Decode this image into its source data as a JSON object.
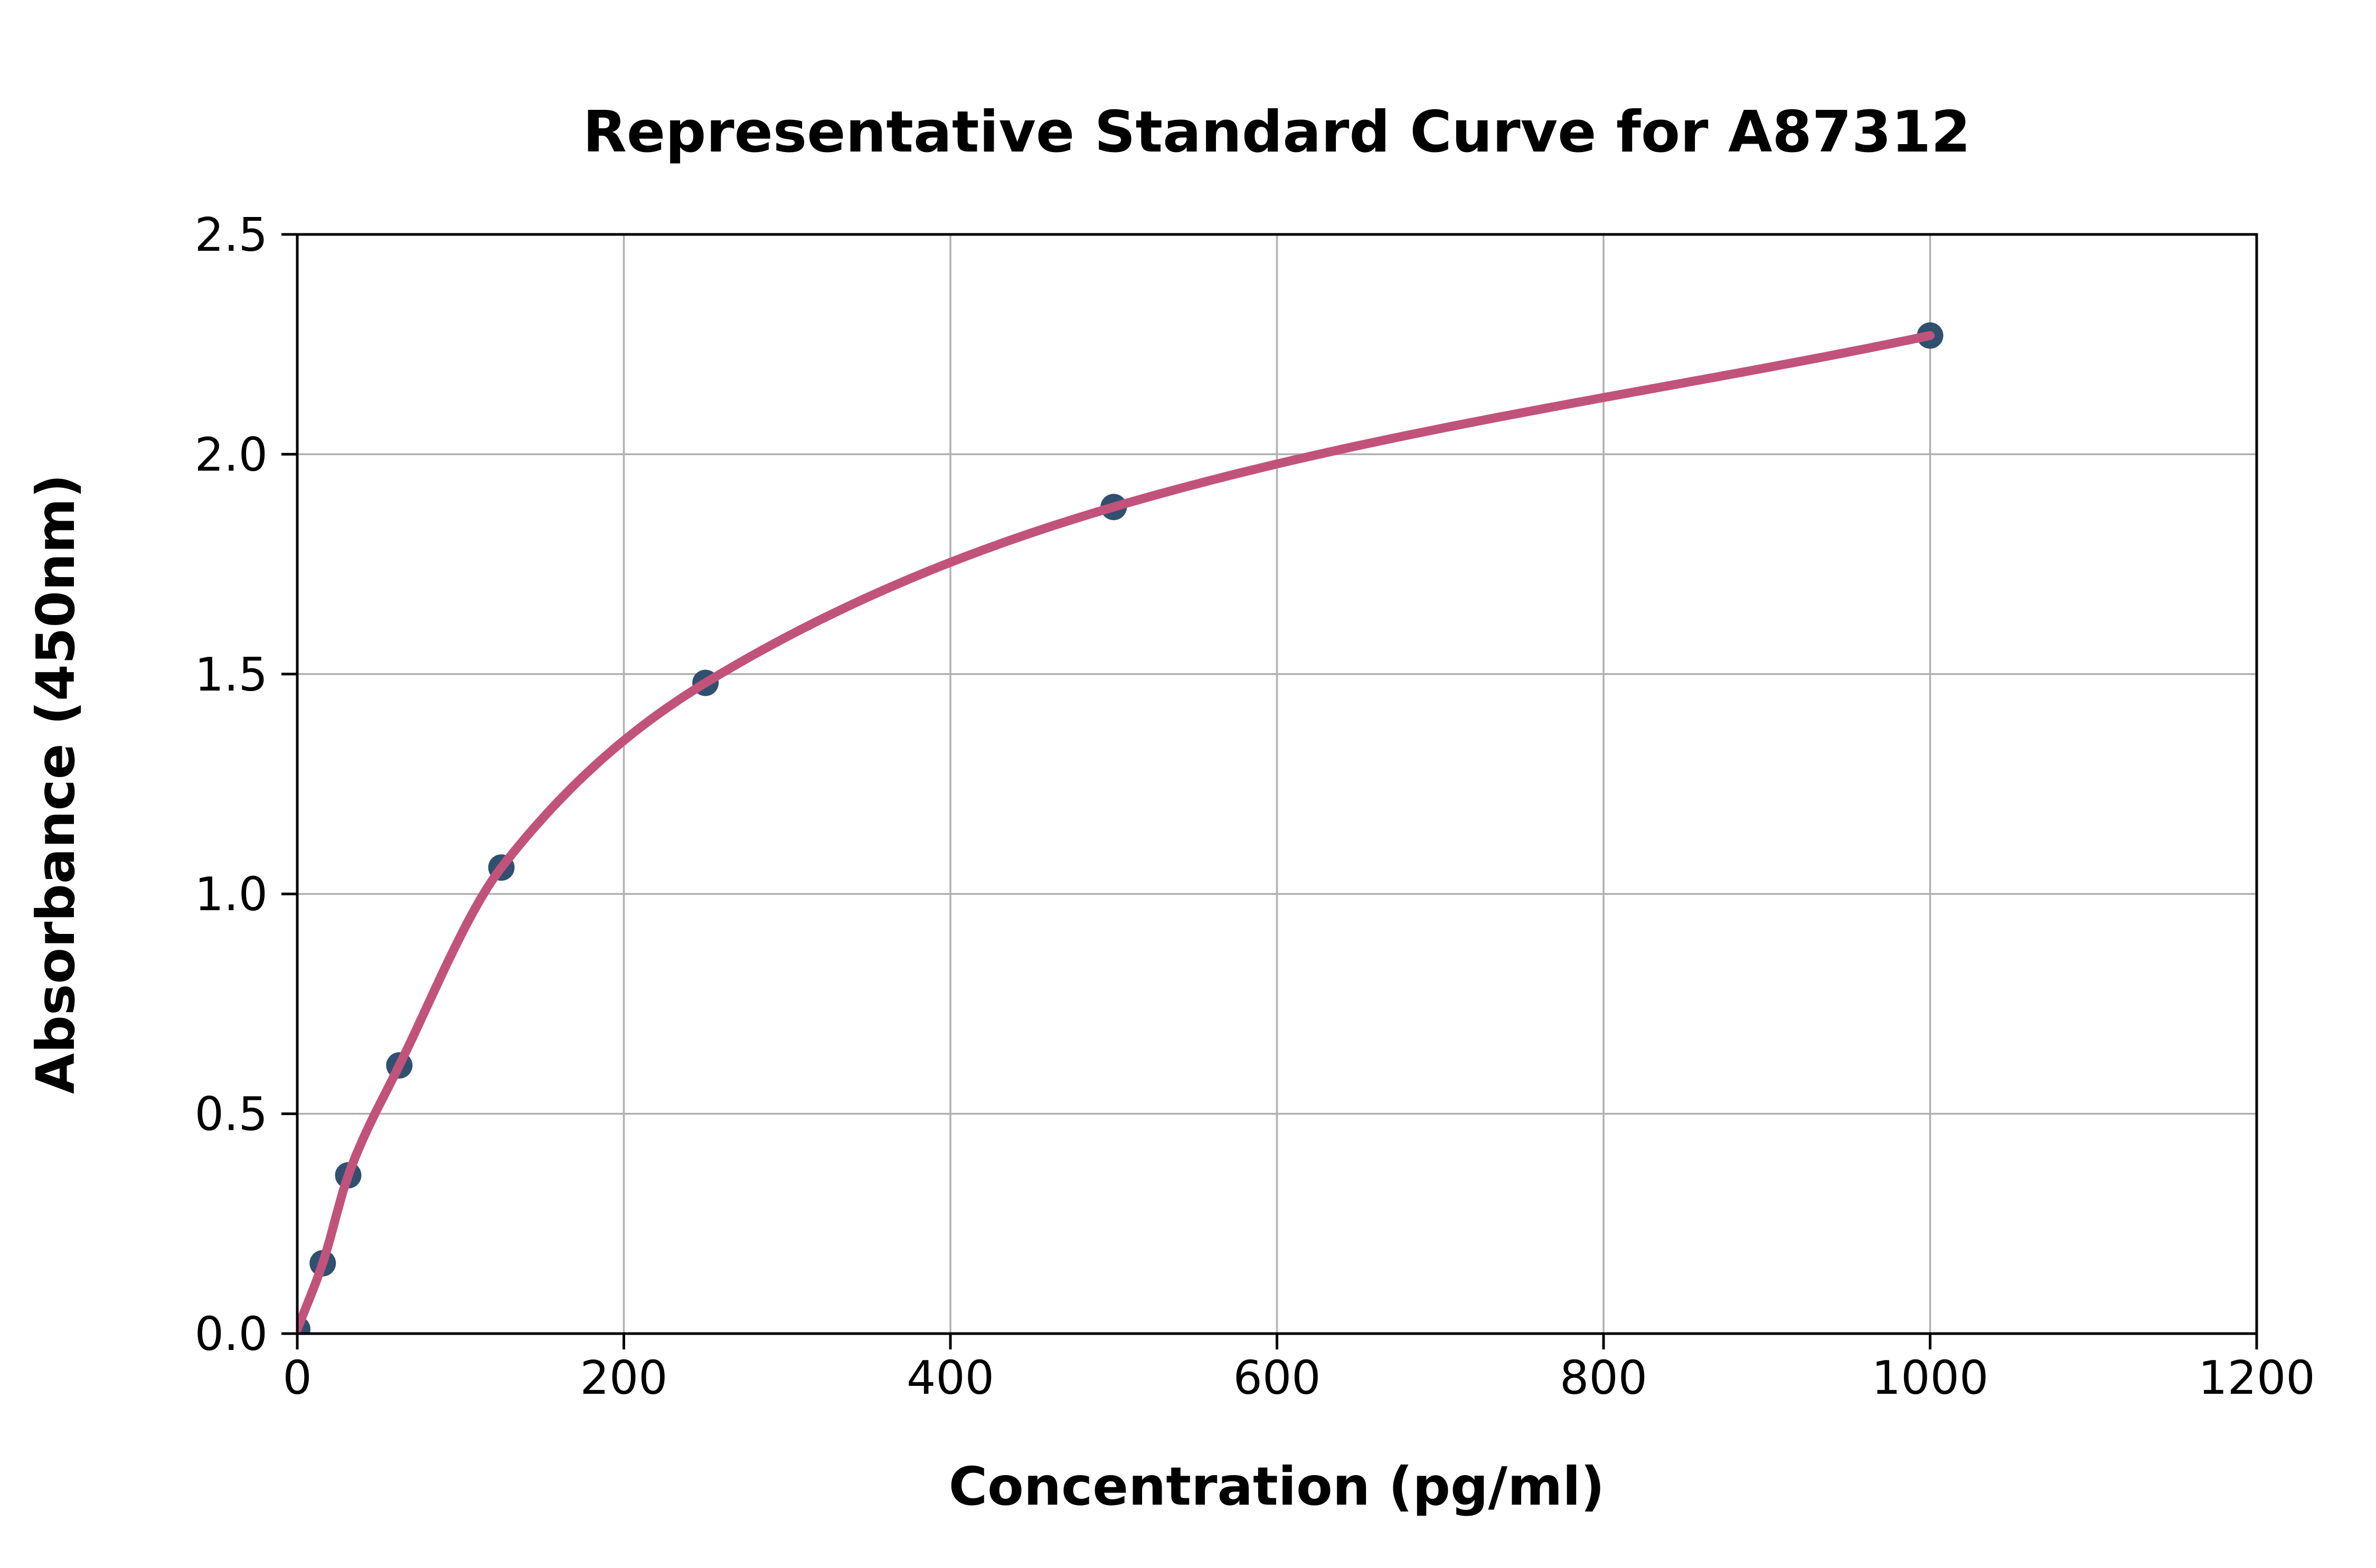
{
  "page": {
    "background": "#ffffff"
  },
  "chart_data": {
    "type": "scatter",
    "title": "Representative Standard Curve for A87312",
    "xlabel": "Concentration (pg/ml)",
    "ylabel": "Absorbance (450nm)",
    "xlim": [
      0,
      1200
    ],
    "ylim": [
      0,
      2.5
    ],
    "grid": true,
    "legend_position": "none",
    "x_ticks": {
      "values": [
        0,
        200,
        400,
        600,
        800,
        1000,
        1200
      ],
      "labels": [
        "0",
        "200",
        "400",
        "600",
        "800",
        "1000",
        "1200"
      ]
    },
    "y_ticks": {
      "values": [
        0,
        0.5,
        1.0,
        1.5,
        2.0,
        2.5
      ],
      "labels": [
        "0.0",
        "0.5",
        "1.0",
        "1.5",
        "2.0",
        "2.5"
      ]
    },
    "series": [
      {
        "name": "standard-points",
        "kind": "scatter",
        "x": [
          0,
          15.6,
          31.2,
          62.5,
          125,
          250,
          500,
          1000
        ],
        "y": [
          0.01,
          0.16,
          0.36,
          0.61,
          1.06,
          1.48,
          1.88,
          2.27
        ]
      },
      {
        "name": "fit-curve",
        "kind": "smooth-line-through-standard-points",
        "x_range": [
          0,
          1000
        ]
      }
    ],
    "colors": {
      "marker": "#315070",
      "curve": "#C1537B",
      "grid": "#B0B0B0",
      "axis": "#000000",
      "text": "#000000"
    }
  }
}
